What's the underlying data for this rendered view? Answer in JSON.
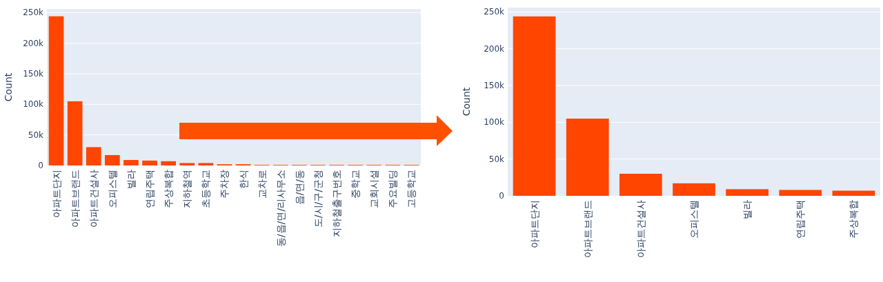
{
  "chart_data": [
    {
      "type": "bar",
      "categories": [
        "아파트단지",
        "아파트브랜드",
        "아파트건설사",
        "오피스텔",
        "빌라",
        "연립주택",
        "주상복합",
        "지하철역",
        "초등학교",
        "주차장",
        "한식",
        "교차로",
        "동/읍/면/리사무소",
        "읍/면/동",
        "도/시/구/군청",
        "지하철출구번호",
        "중학교",
        "교회시설",
        "주요빌딩",
        "고등학교"
      ],
      "values": [
        244000,
        105000,
        30000,
        17000,
        9000,
        8000,
        7000,
        4000,
        4000,
        2000,
        2000,
        1000,
        1000,
        1000,
        1000,
        1000,
        1000,
        1000,
        1000,
        1000
      ],
      "color": "#ff4500",
      "ylabel": "Count",
      "ylim": [
        0,
        256000
      ],
      "yticks": [
        0,
        {
          "value": 50000,
          "label": "50k"
        },
        {
          "value": 100000,
          "label": "100k"
        },
        {
          "value": 150000,
          "label": "150k"
        },
        {
          "value": 200000,
          "label": "200k"
        },
        {
          "value": 250000,
          "label": "250k"
        }
      ],
      "grid": "y"
    },
    {
      "type": "bar",
      "categories": [
        "아파트단지",
        "아파트브랜드",
        "아파트건설사",
        "오피스텔",
        "빌라",
        "연립주택",
        "주상복합"
      ],
      "values": [
        244000,
        105000,
        30000,
        17000,
        9000,
        8000,
        7000
      ],
      "color": "#ff4500",
      "ylabel": "Count",
      "ylim": [
        0,
        256000
      ],
      "yticks": [
        0,
        {
          "value": 50000,
          "label": "50k"
        },
        {
          "value": 100000,
          "label": "100k"
        },
        {
          "value": 150000,
          "label": "150k"
        },
        {
          "value": 200000,
          "label": "200k"
        },
        {
          "value": 250000,
          "label": "250k"
        }
      ],
      "grid": "y"
    }
  ]
}
